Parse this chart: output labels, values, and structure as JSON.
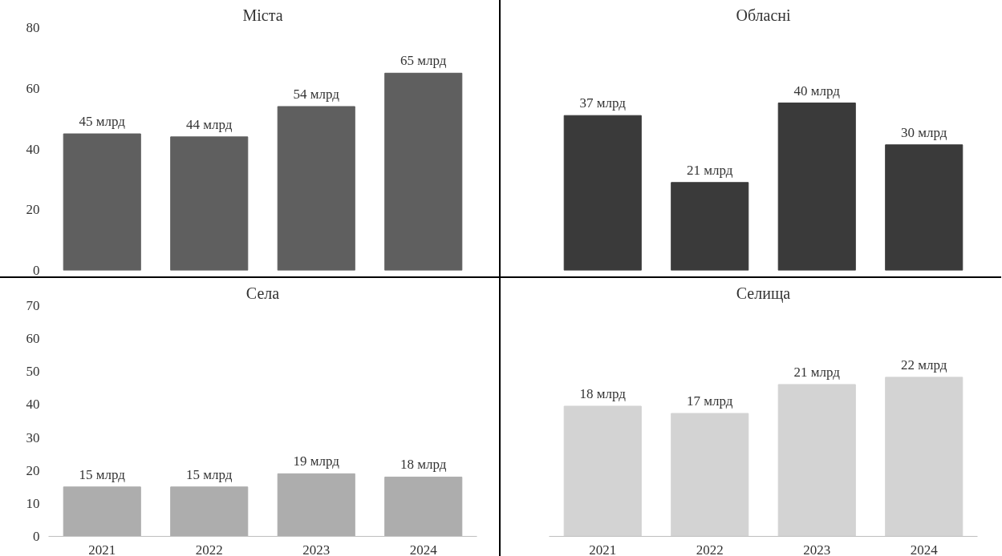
{
  "chart_data": [
    {
      "type": "bar",
      "title": "Міста",
      "categories": [
        "2021",
        "2022",
        "2023",
        "2024"
      ],
      "values": [
        45,
        44,
        54,
        65
      ],
      "value_labels": [
        "45 млрд",
        "44 млрд",
        "54 млрд",
        "65 млрд"
      ],
      "color": "#5f5f5f",
      "ylim": [
        0,
        80
      ],
      "yticks": [
        0,
        20,
        40,
        60,
        80
      ],
      "tick_labels": "y",
      "grid": false
    },
    {
      "type": "bar",
      "title": "Обласні",
      "categories": [
        "2021",
        "2022",
        "2023",
        "2024"
      ],
      "values": [
        37,
        21,
        40,
        30
      ],
      "value_labels": [
        "37 млрд",
        "21 млрд",
        "40 млрд",
        "30 млрд"
      ],
      "color": "#3a3a3a",
      "tick_labels": false,
      "grid": false
    },
    {
      "type": "bar",
      "title": "Села",
      "categories": [
        "2021",
        "2022",
        "2023",
        "2024"
      ],
      "values": [
        15,
        15,
        19,
        18
      ],
      "value_labels": [
        "15 млрд",
        "15 млрд",
        "19 млрд",
        "18 млрд"
      ],
      "color": "#adadad",
      "ylim": [
        0,
        70
      ],
      "yticks": [
        0,
        10,
        20,
        30,
        40,
        50,
        60,
        70
      ],
      "grid": false
    },
    {
      "type": "bar",
      "title": "Селища",
      "categories": [
        "2021",
        "2022",
        "2023",
        "2024"
      ],
      "values": [
        18,
        17,
        21,
        22
      ],
      "value_labels": [
        "18 млрд",
        "17 млрд",
        "21 млрд",
        "22 млрд"
      ],
      "color": "#d3d3d3",
      "tick_labels": "x",
      "grid": false
    }
  ]
}
